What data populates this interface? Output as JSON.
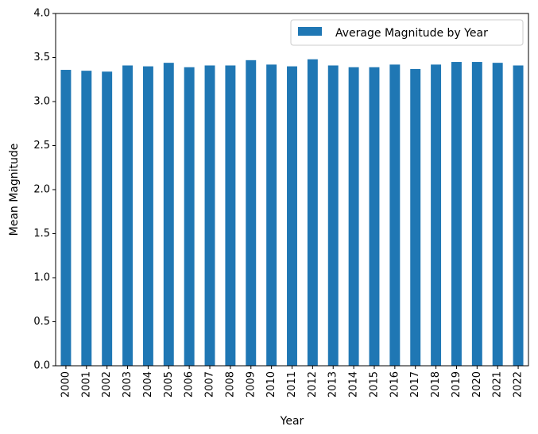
{
  "chart_data": {
    "type": "bar",
    "categories": [
      "2000",
      "2001",
      "2002",
      "2003",
      "2004",
      "2005",
      "2006",
      "2007",
      "2008",
      "2009",
      "2010",
      "2011",
      "2012",
      "2013",
      "2014",
      "2015",
      "2016",
      "2017",
      "2018",
      "2019",
      "2020",
      "2021",
      "2022"
    ],
    "series": [
      {
        "name": "Average Magnitude by Year",
        "values": [
          3.36,
          3.35,
          3.34,
          3.41,
          3.4,
          3.44,
          3.39,
          3.41,
          3.41,
          3.47,
          3.42,
          3.4,
          3.48,
          3.41,
          3.39,
          3.39,
          3.42,
          3.37,
          3.42,
          3.45,
          3.45,
          3.44,
          3.41
        ],
        "color": "#1f77b4"
      }
    ],
    "xlabel": "Year",
    "ylabel": "Mean Magnitude",
    "ylim": [
      0,
      4.0
    ],
    "yticks": [
      "0.0",
      "0.5",
      "1.0",
      "1.5",
      "2.0",
      "2.5",
      "3.0",
      "3.5",
      "4.0"
    ],
    "grid": false,
    "legend_position": "top-right"
  }
}
